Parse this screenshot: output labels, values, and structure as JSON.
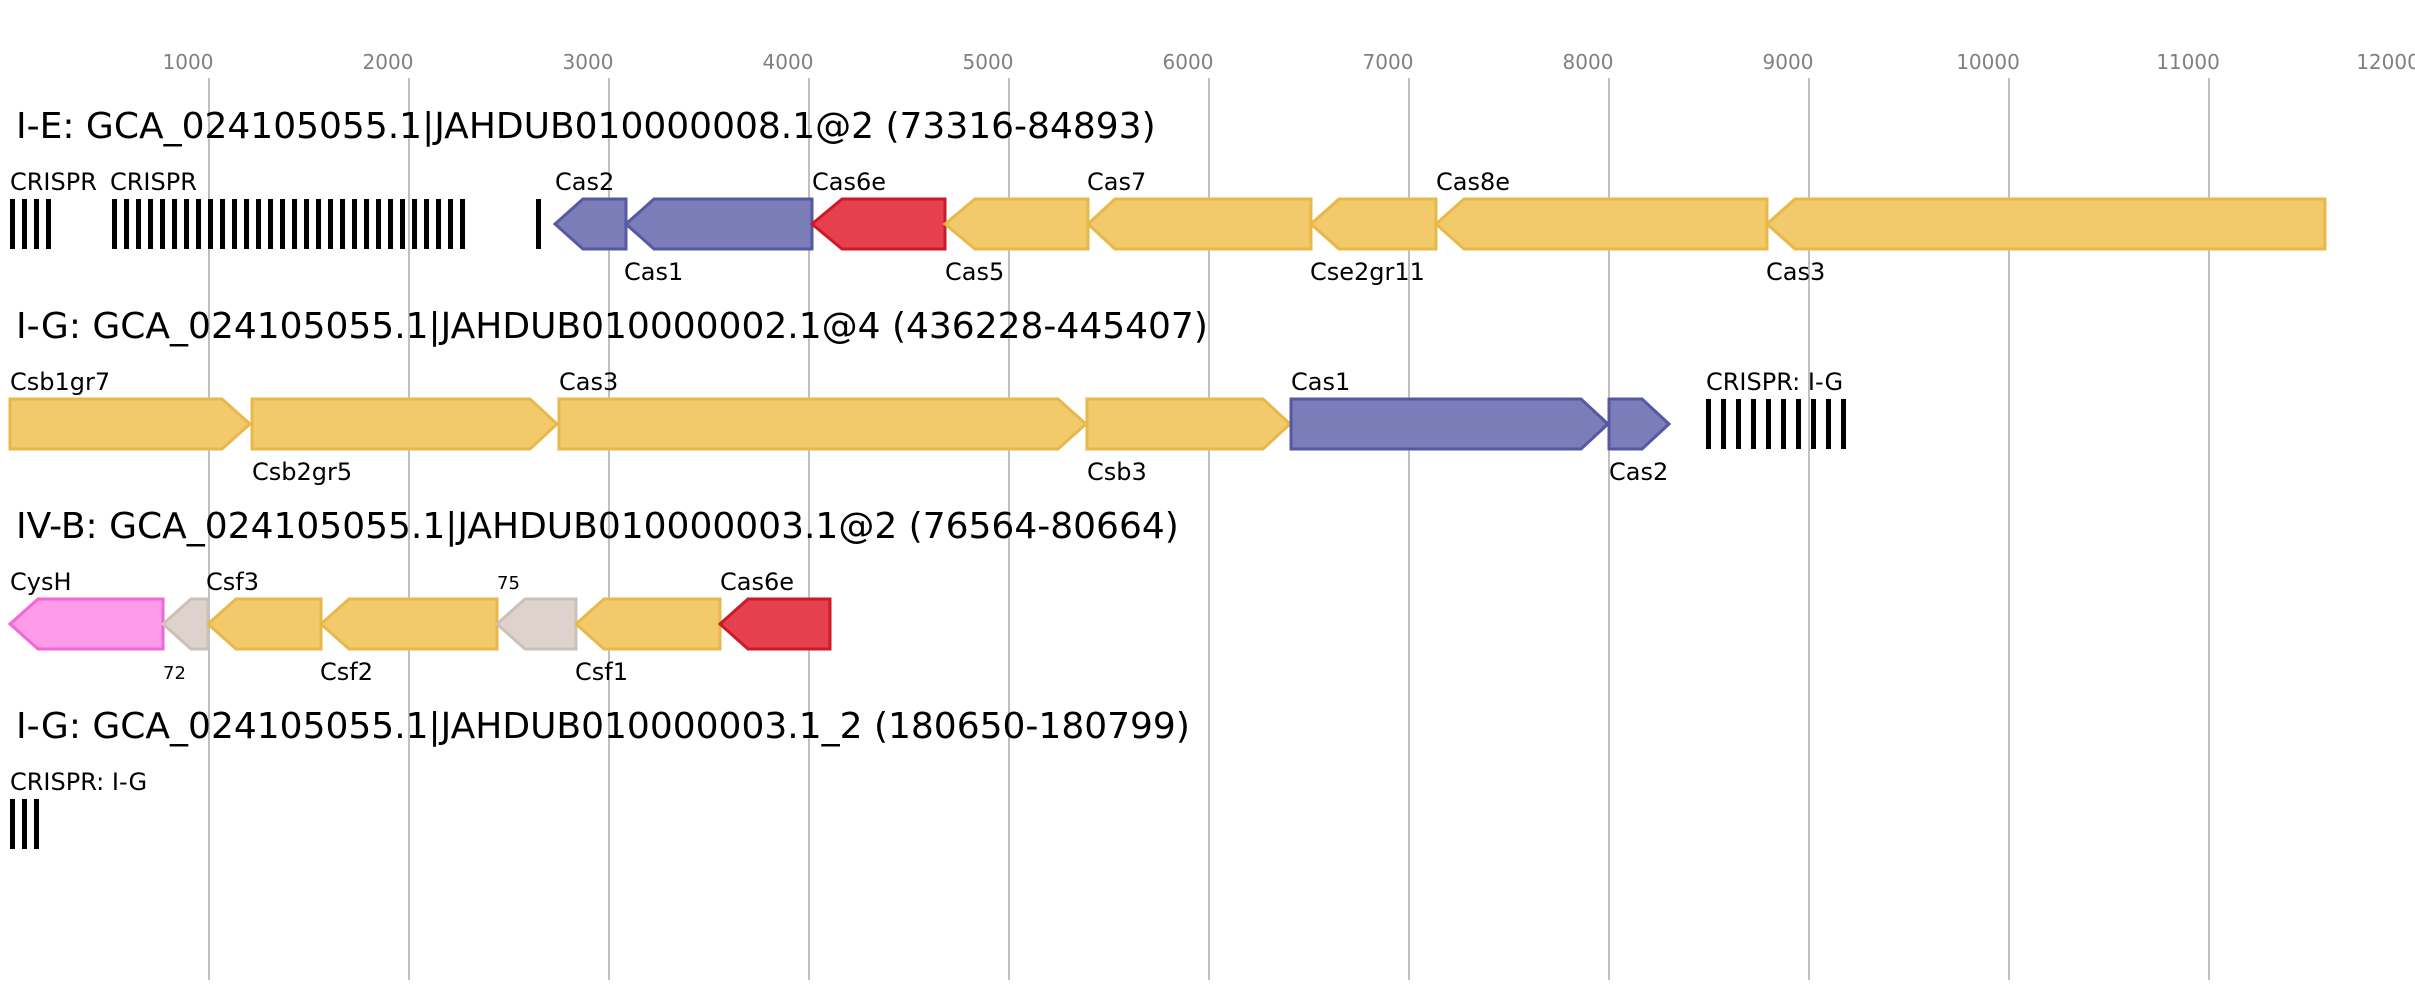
{
  "axis": {
    "ticks": [
      "1000",
      "2000",
      "3000",
      "4000",
      "5000",
      "6000",
      "7000",
      "8000",
      "9000",
      "10000",
      "11000",
      "12000"
    ]
  },
  "colors": {
    "cas_yellow": "#f2c96b",
    "cas_yellow_edge": "#e8b84a",
    "cas_blue": "#7b7db8",
    "cas_blue_edge": "#5558a3",
    "cas_red": "#e6404f",
    "cas_red_edge": "#cc1a2b",
    "cas_pink": "#ff9be8",
    "cas_pink_edge": "#f266d6",
    "other_grey": "#ddd3cc",
    "other_grey_edge": "#ccc1b8",
    "crispr_black": "#000000",
    "grid": "#c0c0c0"
  },
  "loci": [
    {
      "title": "I-E: GCA_024105055.1|JAHDUB010000008.1@2 (73316-84893)",
      "features": [
        {
          "label": "CRISPR",
          "type": "crispr",
          "repeats": 4
        },
        {
          "label": "CRISPR",
          "type": "crispr",
          "repeats": 31
        },
        {
          "label": "Cas2",
          "type": "gene",
          "strand": "-",
          "color": "blue"
        },
        {
          "label": "Cas1",
          "type": "gene",
          "strand": "-",
          "color": "blue"
        },
        {
          "label": "Cas6e",
          "type": "gene",
          "strand": "-",
          "color": "red"
        },
        {
          "label": "Cas5",
          "type": "gene",
          "strand": "-",
          "color": "yellow"
        },
        {
          "label": "Cas7",
          "type": "gene",
          "strand": "-",
          "color": "yellow"
        },
        {
          "label": "Cse2gr11",
          "type": "gene",
          "strand": "-",
          "color": "yellow"
        },
        {
          "label": "Cas8e",
          "type": "gene",
          "strand": "-",
          "color": "yellow"
        },
        {
          "label": "Cas3",
          "type": "gene",
          "strand": "-",
          "color": "yellow"
        }
      ]
    },
    {
      "title": "I-G: GCA_024105055.1|JAHDUB010000002.1@4 (436228-445407)",
      "features": [
        {
          "label": "Csb1gr7",
          "type": "gene",
          "strand": "+",
          "color": "yellow"
        },
        {
          "label": "Csb2gr5",
          "type": "gene",
          "strand": "+",
          "color": "yellow"
        },
        {
          "label": "Cas3",
          "type": "gene",
          "strand": "+",
          "color": "yellow"
        },
        {
          "label": "Csb3",
          "type": "gene",
          "strand": "+",
          "color": "yellow"
        },
        {
          "label": "Cas1",
          "type": "gene",
          "strand": "+",
          "color": "blue"
        },
        {
          "label": "Cas2",
          "type": "gene",
          "strand": "+",
          "color": "blue"
        },
        {
          "label": "CRISPR: I-G",
          "type": "crispr",
          "repeats": 10
        }
      ]
    },
    {
      "title": "IV-B: GCA_024105055.1|JAHDUB010000003.1@2 (76564-80664)",
      "features": [
        {
          "label": "CysH",
          "type": "gene",
          "strand": "-",
          "color": "pink"
        },
        {
          "label": "72",
          "type": "gene",
          "strand": "-",
          "color": "grey",
          "small": true
        },
        {
          "label": "Csf3",
          "type": "gene",
          "strand": "-",
          "color": "yellow"
        },
        {
          "label": "Csf2",
          "type": "gene",
          "strand": "-",
          "color": "yellow"
        },
        {
          "label": "75",
          "type": "gene",
          "strand": "-",
          "color": "grey",
          "small": true
        },
        {
          "label": "Csf1",
          "type": "gene",
          "strand": "-",
          "color": "yellow"
        },
        {
          "label": "Cas6e",
          "type": "gene",
          "strand": "-",
          "color": "red"
        }
      ]
    },
    {
      "title": "I-G: GCA_024105055.1|JAHDUB010000003.1_2 (180650-180799)",
      "features": [
        {
          "label": "CRISPR: I-G",
          "type": "crispr",
          "repeats": 3
        }
      ]
    }
  ]
}
